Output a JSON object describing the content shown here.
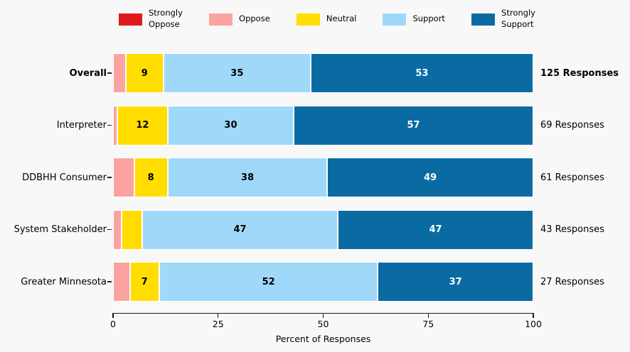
{
  "chart_data": {
    "type": "bar",
    "orientation": "horizontal",
    "stacked": true,
    "title": "",
    "xlabel": "Percent of Responses",
    "xlim": [
      0,
      100
    ],
    "x_ticks": [
      0,
      25,
      50,
      75,
      100
    ],
    "legend_position": "top",
    "grid": false,
    "categories": [
      "Overall",
      "Interpreter",
      "DDBHH Consumer",
      "System Stakeholder",
      "Greater Minnesota"
    ],
    "bold_category": "Overall",
    "response_counts": [
      "125 Responses",
      "69 Responses",
      "61 Responses",
      "43 Responses",
      "27 Responses"
    ],
    "bold_response_count": "125 Responses",
    "value_label_min": 7,
    "series": [
      {
        "name": "Strongly Oppose",
        "legend_label": "Strongly\nOppose",
        "color": "#e0191b",
        "label_text_color": "#000000",
        "values": [
          0,
          0,
          0,
          0,
          0
        ]
      },
      {
        "name": "Oppose",
        "legend_label": "Oppose",
        "color": "#fba3a0",
        "label_text_color": "#000000",
        "values": [
          3,
          1,
          5,
          2,
          4
        ]
      },
      {
        "name": "Neutral",
        "legend_label": "Neutral",
        "color": "#ffdd00",
        "label_text_color": "#000000",
        "values": [
          9,
          12,
          8,
          5,
          7
        ]
      },
      {
        "name": "Support",
        "legend_label": "Support",
        "color": "#a0d8fa",
        "label_text_color": "#000000",
        "values": [
          35,
          30,
          38,
          47,
          52
        ]
      },
      {
        "name": "Strongly Support",
        "legend_label": "Strongly\nSupport",
        "color": "#0a6ba3",
        "label_text_color": "#ffffff",
        "values": [
          53,
          57,
          49,
          47,
          37
        ]
      }
    ]
  },
  "colors": {
    "background": "#f8f8f8",
    "axis": "#1a1a1a",
    "segment_edge": "#ffffff"
  }
}
